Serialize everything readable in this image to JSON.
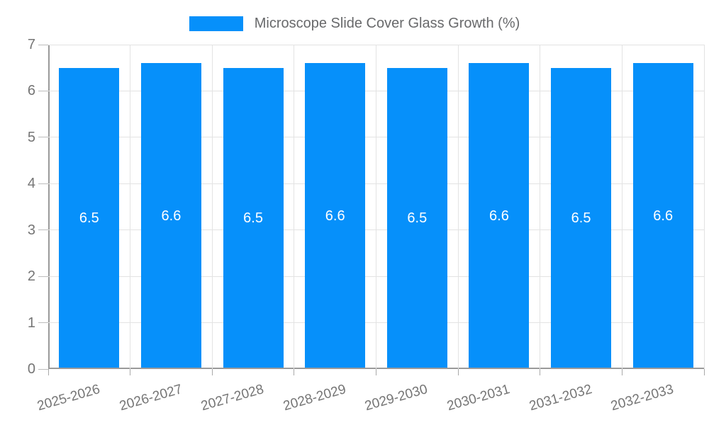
{
  "chart_data": {
    "type": "bar",
    "title": "Microscope Slide Cover Glass Growth (%)",
    "categories": [
      "2025-2026",
      "2026-2027",
      "2027-2028",
      "2028-2029",
      "2029-2030",
      "2030-2031",
      "2031-2032",
      "2032-2033"
    ],
    "values": [
      6.5,
      6.6,
      6.5,
      6.6,
      6.5,
      6.6,
      6.5,
      6.6
    ],
    "value_labels": [
      "6.5",
      "6.6",
      "6.5",
      "6.6",
      "6.5",
      "6.6",
      "6.5",
      "6.6"
    ],
    "xlabel": "",
    "ylabel": "",
    "ylim": [
      0,
      7
    ],
    "yticks": [
      0,
      1,
      2,
      3,
      4,
      5,
      6,
      7
    ],
    "grid": true,
    "legend_position": "top",
    "bar_color": "#0690fa",
    "value_label_color": "#ffffff",
    "axis_color": "#9a9a9a",
    "grid_color": "#e3e3e3",
    "tick_label_color": "#757575",
    "title_color": "#68696b"
  }
}
